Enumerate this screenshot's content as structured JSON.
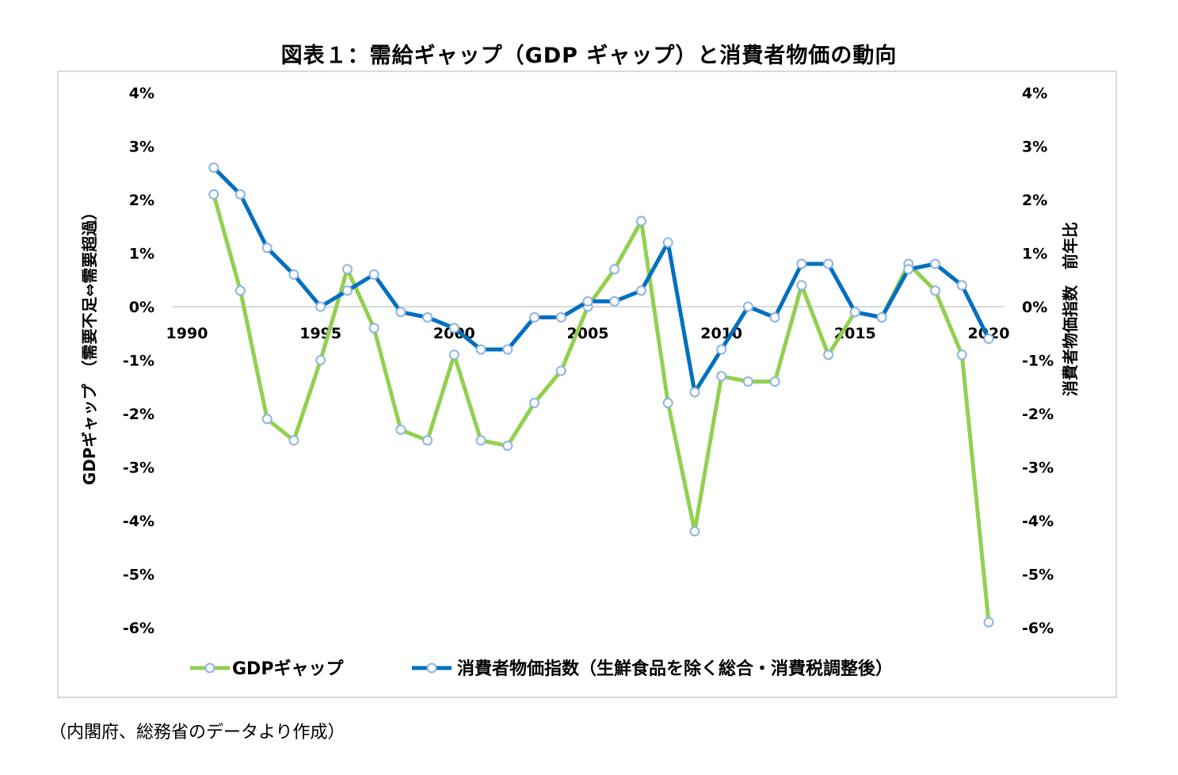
{
  "title": "図表１：需給ギャップ（GDP ギャップ）と消費者物価の動向",
  "source_note": "（内閣府、総務省のデータより作成）",
  "colors": {
    "gdp": "#92d050",
    "cpi": "#0070c0",
    "marker_fill": "#ffffff",
    "marker_stroke": "#8eb4e3",
    "axis": "#d9d9d9",
    "frame": "#d9d9d9"
  },
  "chart_data": {
    "type": "line",
    "title": "図表１：需給ギャップ（GDP ギャップ）と消費者物価の動向",
    "ylabel_left": "GDPギャップ　（需要不足⇔需要超過）",
    "ylabel_right": "消費者物価指数　前年比",
    "xlim": [
      1990,
      2020
    ],
    "x_ticks": [
      "1990",
      "1995",
      "2000",
      "2005",
      "2010",
      "2015",
      "2020"
    ],
    "ylim": [
      -0.06,
      0.04
    ],
    "y_ticks": [
      "4%",
      "3%",
      "2%",
      "1%",
      "0%",
      "-1%",
      "-2%",
      "-3%",
      "-4%",
      "-5%",
      "-6%"
    ],
    "grid": false,
    "legend_position": "bottom",
    "series": [
      {
        "name": "GDPギャップ",
        "axis": "left",
        "x": [
          1991,
          1992,
          1993,
          1994,
          1995,
          1996,
          1997,
          1998,
          1999,
          2000,
          2001,
          2002,
          2003,
          2004,
          2005,
          2006,
          2007,
          2008,
          2009,
          2010,
          2011,
          2012,
          2013,
          2014,
          2015,
          2016,
          2017,
          2018,
          2019,
          2020
        ],
        "values": [
          0.021,
          0.003,
          -0.021,
          -0.025,
          -0.01,
          0.007,
          -0.004,
          -0.023,
          -0.025,
          -0.009,
          -0.025,
          -0.026,
          -0.018,
          -0.012,
          0.0,
          0.007,
          0.016,
          -0.018,
          -0.042,
          -0.013,
          -0.014,
          -0.014,
          0.004,
          -0.009,
          -0.001,
          -0.002,
          0.008,
          0.003,
          -0.009,
          -0.059
        ]
      },
      {
        "name": "消費者物価指数（生鮮食品を除く総合・消費税調整後）",
        "axis": "right",
        "x": [
          1991,
          1992,
          1993,
          1994,
          1995,
          1996,
          1997,
          1998,
          1999,
          2000,
          2001,
          2002,
          2003,
          2004,
          2005,
          2006,
          2007,
          2008,
          2009,
          2010,
          2011,
          2012,
          2013,
          2014,
          2015,
          2016,
          2017,
          2018,
          2019,
          2020
        ],
        "values": [
          0.026,
          0.021,
          0.011,
          0.006,
          0.0,
          0.003,
          0.006,
          -0.001,
          -0.002,
          -0.004,
          -0.008,
          -0.008,
          -0.002,
          -0.002,
          0.001,
          0.001,
          0.003,
          0.012,
          -0.016,
          -0.008,
          0.0,
          -0.002,
          0.008,
          0.008,
          -0.001,
          -0.002,
          0.007,
          0.008,
          0.004,
          -0.006
        ]
      }
    ]
  }
}
